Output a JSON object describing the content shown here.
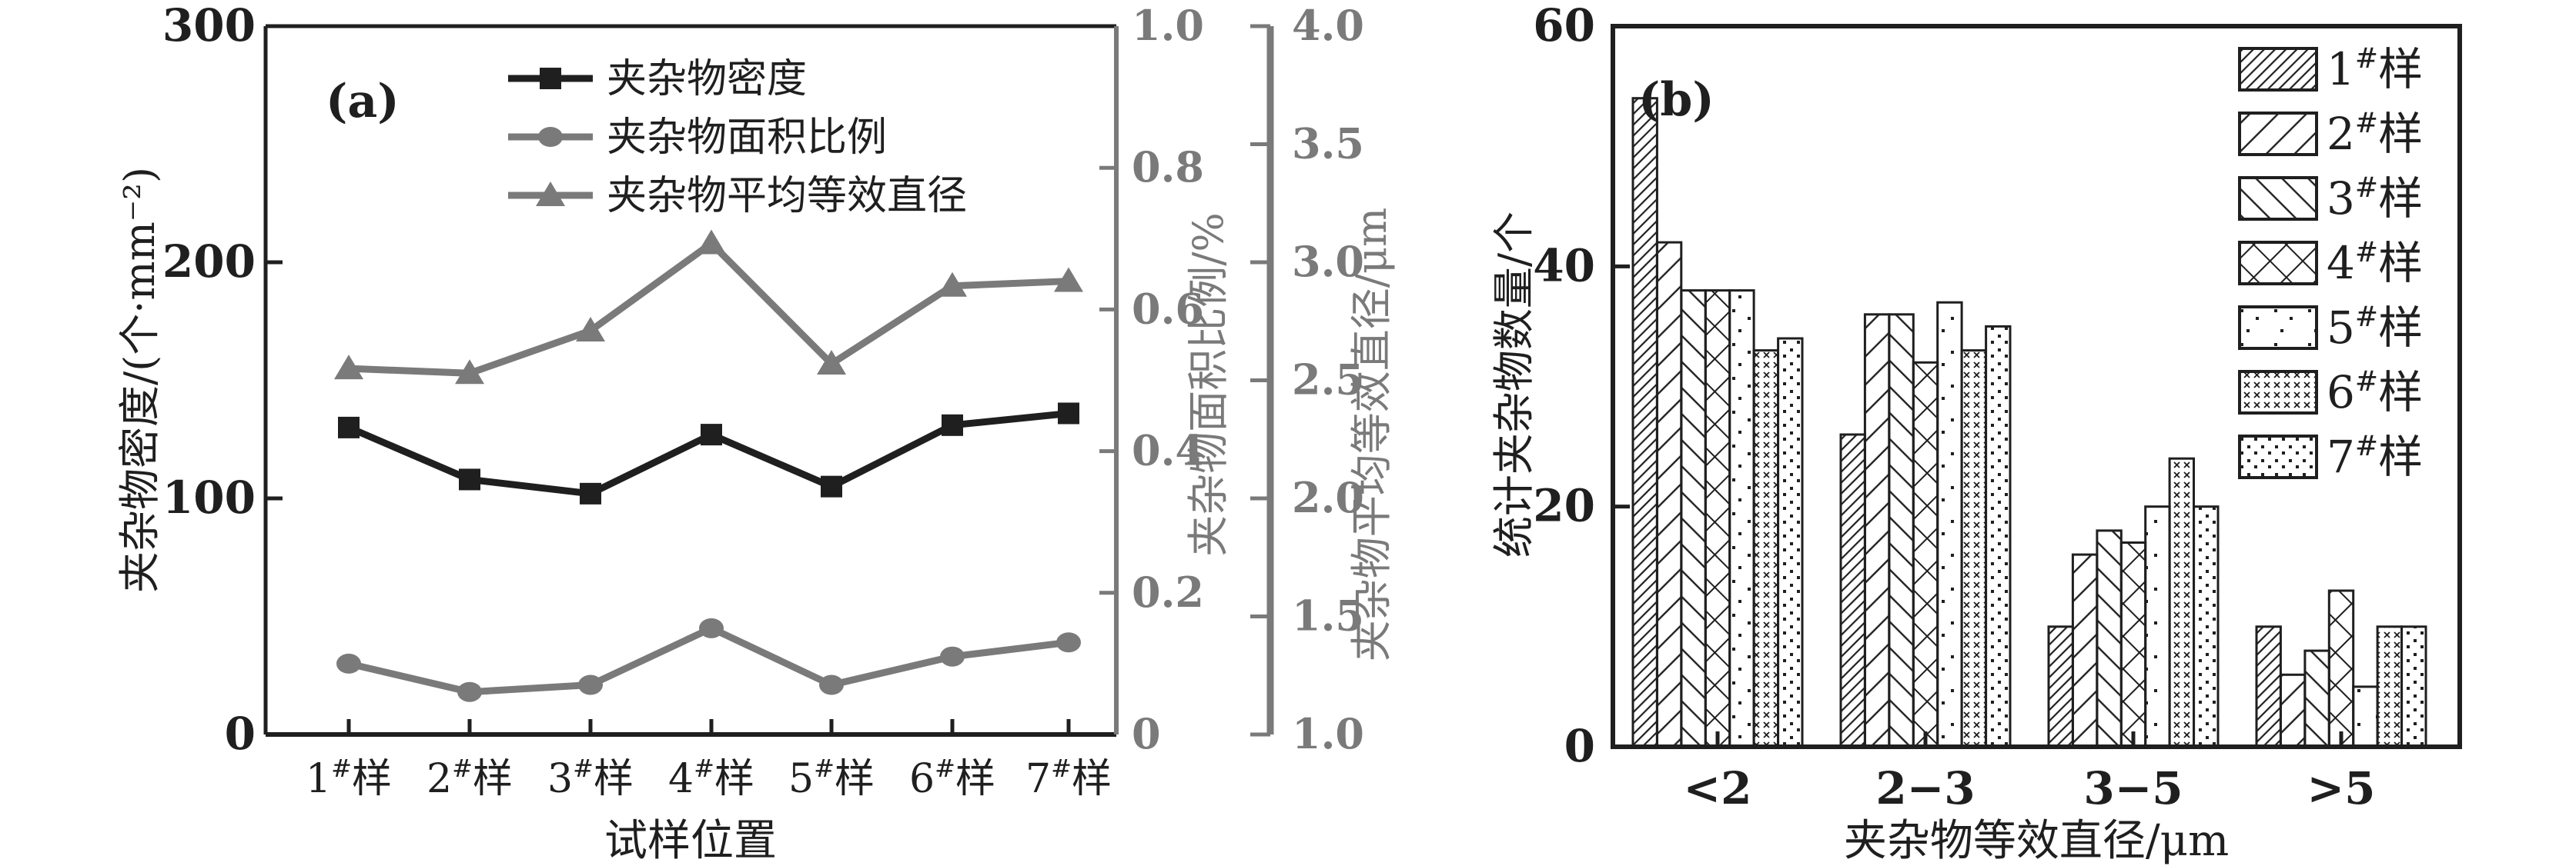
{
  "figure": {
    "background": "#ffffff"
  },
  "colors": {
    "ink": "#1f1f1f",
    "gray": "#7a7a7a"
  },
  "chart_data": [
    {
      "type": "line",
      "panel_label": "(a)",
      "xlabel": "试样位置",
      "categories": [
        "1#样",
        "2#样",
        "3#样",
        "4#样",
        "5#样",
        "6#样",
        "7#样"
      ],
      "axes": [
        {
          "position": "left",
          "label": "夹杂物密度/(个·mm⁻²)",
          "range": [
            0,
            300
          ],
          "tick_values": [
            0,
            100,
            200,
            300
          ],
          "tick_labels": [
            "0",
            "100",
            "200",
            "300"
          ],
          "color": "#1f1f1f"
        },
        {
          "position": "right-inner",
          "label": "夹杂物面积比例/%",
          "range": [
            0,
            1.0
          ],
          "tick_values": [
            0,
            0.2,
            0.4,
            0.6,
            0.8,
            1.0
          ],
          "tick_labels": [
            "0",
            "0.2",
            "0.4",
            "0.6",
            "0.8",
            "1.0"
          ],
          "color": "#7a7a7a"
        },
        {
          "position": "right-outer",
          "label": "夹杂物平均等效直径/μm",
          "range": [
            1.0,
            4.0
          ],
          "tick_values": [
            1.0,
            1.5,
            2.0,
            2.5,
            3.0,
            3.5,
            4.0
          ],
          "tick_labels": [
            "1.0",
            "1.5",
            "2.0",
            "2.5",
            "3.0",
            "3.5",
            "4.0"
          ],
          "color": "#7a7a7a"
        }
      ],
      "series": [
        {
          "name": "夹杂物密度",
          "axis": 0,
          "marker": "square",
          "color": "#1f1f1f",
          "values": [
            130,
            108,
            102,
            127,
            105,
            131,
            136
          ]
        },
        {
          "name": "夹杂物面积比例",
          "axis": 1,
          "marker": "circle",
          "color": "#7a7a7a",
          "values": [
            0.1,
            0.06,
            0.07,
            0.15,
            0.07,
            0.11,
            0.13
          ]
        },
        {
          "name": "夹杂物平均等效直径",
          "axis": 2,
          "marker": "triangle",
          "color": "#7a7a7a",
          "values": [
            2.55,
            2.53,
            2.71,
            3.08,
            2.57,
            2.9,
            2.92
          ]
        }
      ],
      "legend_position": "top-center",
      "grid": false
    },
    {
      "type": "bar",
      "panel_label": "(b)",
      "xlabel": "夹杂物等效直径/μm",
      "ylabel": "统计夹杂物数量/个",
      "ylim": [
        0,
        60
      ],
      "ytick_values": [
        0,
        20,
        40,
        60
      ],
      "ytick_labels": [
        "0",
        "20",
        "40",
        "60"
      ],
      "categories": [
        "<2",
        "2−3",
        "3−5",
        ">5"
      ],
      "series": [
        {
          "name": "1#样",
          "pattern": "fine-forward-hatch",
          "values": [
            54,
            26,
            10,
            10
          ]
        },
        {
          "name": "2#样",
          "pattern": "wide-forward-hatch",
          "values": [
            42,
            36,
            16,
            6
          ]
        },
        {
          "name": "3#样",
          "pattern": "back-hatch",
          "values": [
            38,
            36,
            18,
            8
          ]
        },
        {
          "name": "4#样",
          "pattern": "diamond-crosshatch",
          "values": [
            38,
            32,
            17,
            13
          ]
        },
        {
          "name": "5#样",
          "pattern": "sparse-dots",
          "values": [
            38,
            37,
            20,
            5
          ]
        },
        {
          "name": "6#样",
          "pattern": "x-marks",
          "values": [
            33,
            33,
            24,
            10
          ]
        },
        {
          "name": "7#样",
          "pattern": "dense-dots",
          "values": [
            34,
            35,
            20,
            10
          ]
        }
      ],
      "legend_position": "top-right",
      "grid": false
    }
  ]
}
